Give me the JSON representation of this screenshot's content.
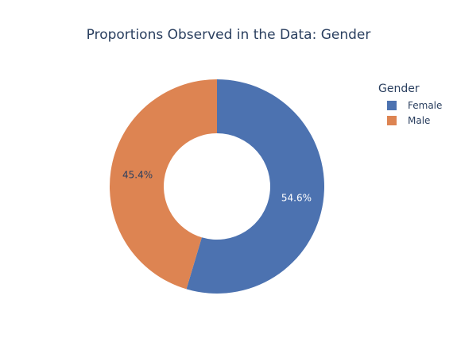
{
  "chart_data": {
    "type": "pie",
    "hole": true,
    "title": "Proportions Observed in the Data: Gender",
    "legend_title": "Gender",
    "legend_position": "top-right",
    "categories": [
      "Female",
      "Male"
    ],
    "values": [
      54.6,
      45.4
    ],
    "labels": [
      "54.6%",
      "45.4%"
    ],
    "colors": [
      "#4c72b0",
      "#dd8452"
    ],
    "label_colors": [
      "#ffffff",
      "#2a3f5f"
    ]
  }
}
